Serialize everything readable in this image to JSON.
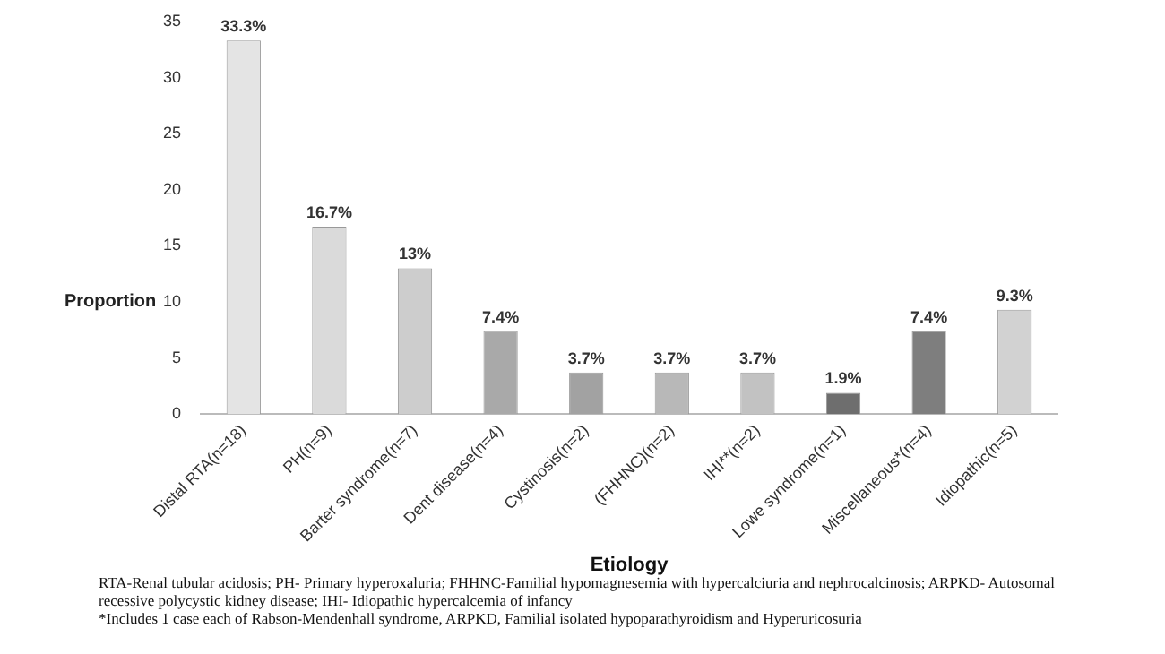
{
  "chart_data": {
    "type": "bar",
    "xlabel": "Etiology",
    "ylabel": "Proportion",
    "categories": [
      "Distal RTA(n=18)",
      "PH(n=9)",
      "Barter syndrome(n=7)",
      "Dent disease(n=4)",
      "Cystinosis(n=2)",
      "(FHHNC)(n=2)",
      "IHI**(n=2)",
      "Lowe syndrome(n=1)",
      "Miscellaneous*(n=4)",
      "Idiopathic(n=5)"
    ],
    "values": [
      33.3,
      16.7,
      13,
      7.4,
      3.7,
      3.7,
      3.7,
      1.9,
      7.4,
      9.3
    ],
    "colors": [
      "#e4e4e4",
      "#dadada",
      "#cdcdcd",
      "#a9a9a9",
      "#a2a2a2",
      "#b8b8b8",
      "#c2c2c2",
      "#6e6e6e",
      "#7e7e7e",
      "#d2d2d2"
    ],
    "value_labels": [
      "33.3%",
      "16.7%",
      "13%",
      "7.4%",
      "3.7%",
      "3.7%",
      "3.7%",
      "1.9%",
      "7.4%",
      "9.3%"
    ],
    "ylim": [
      0,
      35
    ],
    "yticks": [
      0,
      5,
      10,
      15,
      20,
      25,
      30,
      35
    ],
    "grid": false,
    "legend": false,
    "annotations": [
      "RTA-Renal tubular acidosis; PH- Primary hyperoxaluria; FHHNC-Familial hypomagnesemia with hypercalciuria and nephrocalcinosis; ARPKD- Autosomal recessive polycystic kidney disease; IHI- Idiopathic hypercalcemia of infancy",
      "*Includes 1 case each of Rabson-Mendenhall syndrome, ARPKD, Familial isolated hypoparathyroidism and Hyperuricosuria"
    ]
  }
}
